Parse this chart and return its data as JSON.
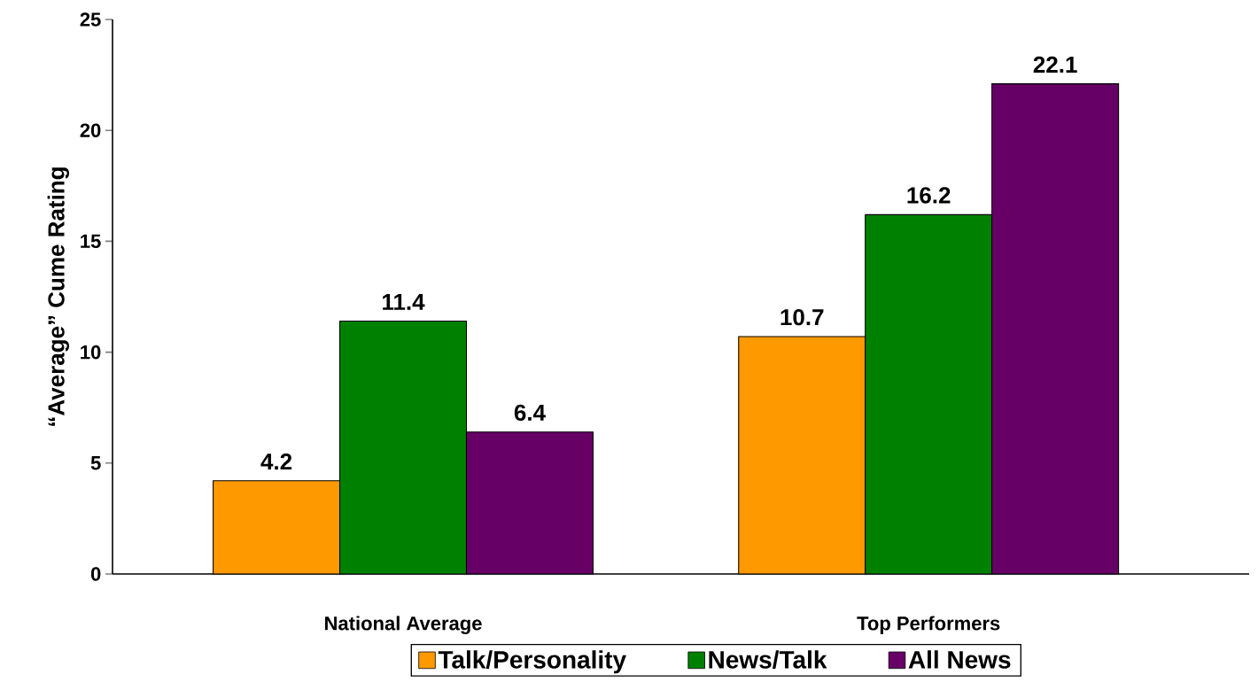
{
  "chart_data": {
    "type": "bar",
    "ylabel": "“Average” Cume Rating",
    "categories": [
      "National Average",
      "Top Performers"
    ],
    "series": [
      {
        "name": "Talk/Personality",
        "color": "#ff9900",
        "values": [
          4.2,
          10.7
        ]
      },
      {
        "name": "News/Talk",
        "color": "#008000",
        "values": [
          11.4,
          16.2
        ]
      },
      {
        "name": "All News",
        "color": "#660066",
        "values": [
          6.4,
          22.1
        ]
      }
    ],
    "ylim": [
      0,
      25
    ],
    "yticks": [
      0,
      5,
      10,
      15,
      20,
      25
    ],
    "data_labels": true,
    "legend": "bottom",
    "grid": false
  }
}
